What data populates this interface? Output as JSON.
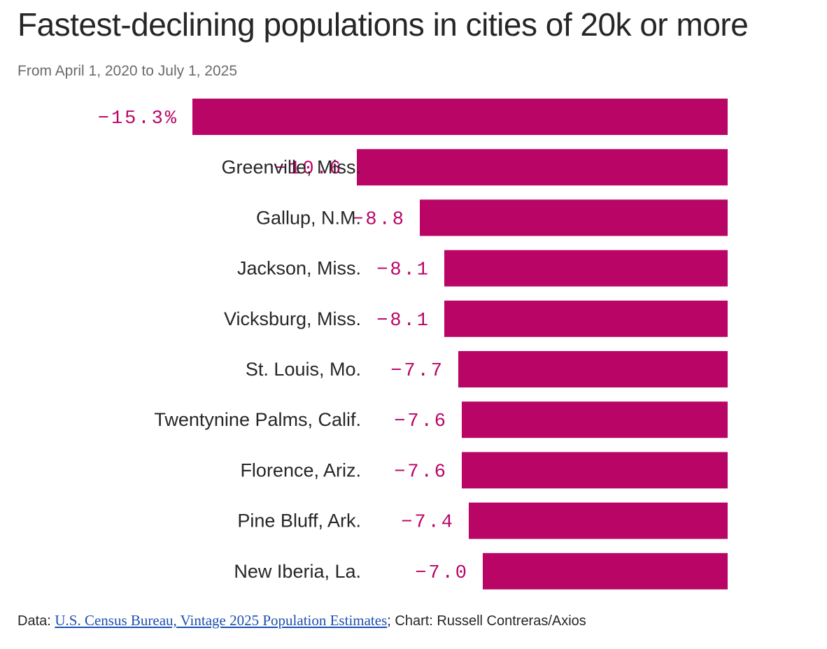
{
  "header": {
    "title": "Fastest-declining populations in cities of 20k or more",
    "subtitle": "From April 1, 2020 to July 1, 2025"
  },
  "footer": {
    "data_prefix": "Data: ",
    "source_link": "U.S. Census Bureau, Vintage 2025 Population Estimates",
    "credit": "; Chart: Russell Contreras/Axios"
  },
  "colors": {
    "bar": "#b90566",
    "value_label": "#b90566",
    "category_label": "#262626",
    "link": "#1d4fae"
  },
  "chart_data": {
    "type": "bar",
    "orientation": "horizontal",
    "categories": [
      "",
      "Greenville, Miss.",
      "Gallup, N.M.",
      "Jackson, Miss.",
      "Vicksburg, Miss.",
      "St. Louis, Mo.",
      "Twentynine Palms, Calif.",
      "Florence, Ariz.",
      "Pine Bluff, Ark.",
      "New Iberia, La."
    ],
    "values": [
      -15.3,
      -10.6,
      -8.8,
      -8.1,
      -8.1,
      -7.7,
      -7.6,
      -7.6,
      -7.4,
      -7.0
    ],
    "value_labels": [
      "−15.3%",
      "−10.6",
      "−8.8",
      "−8.1",
      "−8.1",
      "−7.7",
      "−7.6",
      "−7.6",
      "−7.4",
      "−7.0"
    ],
    "unit": "%",
    "xlim": [
      -15.3,
      0
    ],
    "grid": false,
    "legend": "none"
  }
}
